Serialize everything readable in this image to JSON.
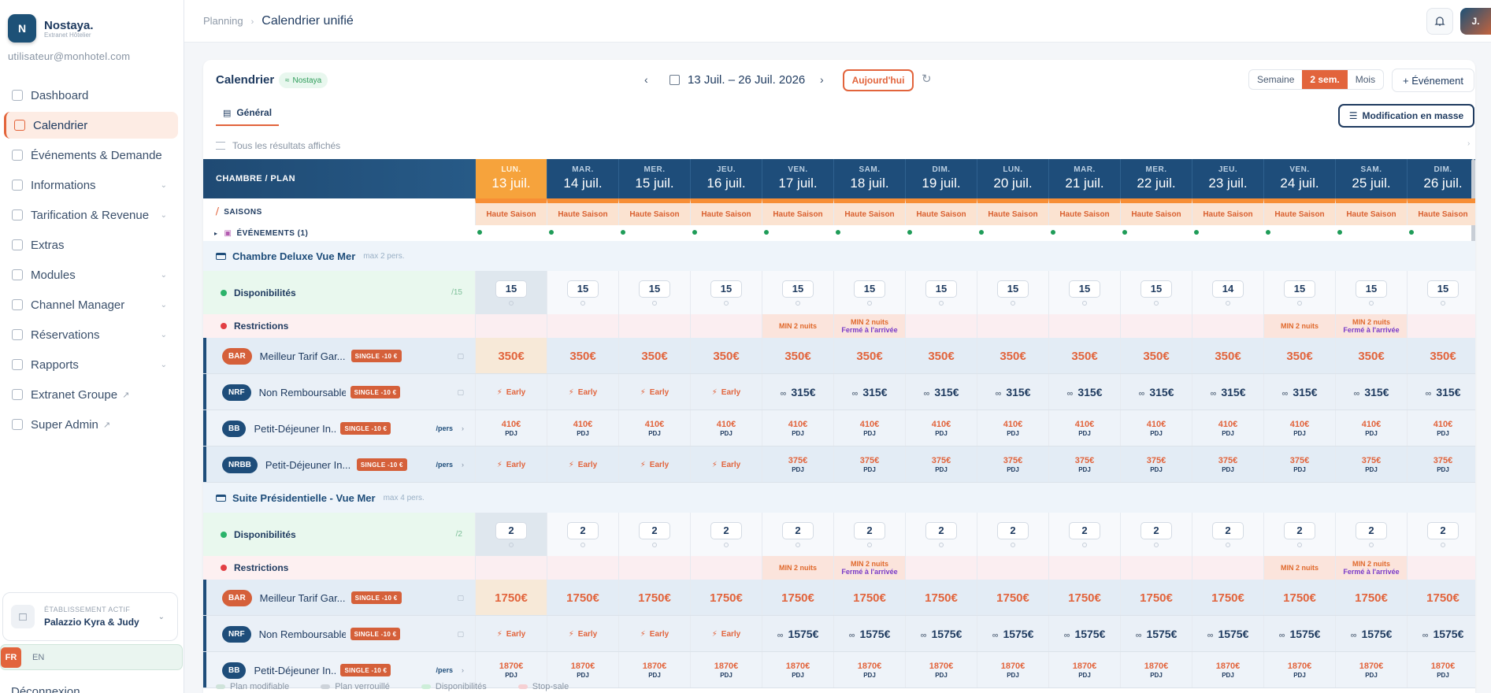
{
  "sidebar": {
    "logo_letter": "N",
    "brand_name": "Nostaya.",
    "brand_sub": "Extranet Hôtelier",
    "user_email": "utilisateur@monhotel.com",
    "items": [
      {
        "label": "Dashboard",
        "icon": "grid-icon"
      },
      {
        "label": "Calendrier",
        "icon": "calendar-icon",
        "active": true
      },
      {
        "label": "Événements & Demande",
        "icon": "sparkle-icon"
      },
      {
        "label": "Informations",
        "icon": "building-icon",
        "chevron": true
      },
      {
        "label": "Tarification & Revenue",
        "icon": "dollar-icon",
        "chevron": true
      },
      {
        "label": "Extras",
        "icon": "box-icon"
      },
      {
        "label": "Modules",
        "icon": "grid-icon",
        "chevron": true
      },
      {
        "label": "Channel Manager",
        "icon": "broadcast-icon",
        "chevron": true
      },
      {
        "label": "Réservations",
        "icon": "book-icon",
        "chevron": true
      },
      {
        "label": "Rapports",
        "icon": "chart-icon",
        "chevron": true
      },
      {
        "label": "Extranet Groupe",
        "icon": "building-icon",
        "external": true
      },
      {
        "label": "Super Admin",
        "icon": "shield-icon",
        "external": true
      }
    ],
    "establishment_label": "ÉTABLISSEMENT ACTIF",
    "establishment_name": "Palazzio Kyra & Judy",
    "lang_fr": "FR",
    "lang_en": "EN",
    "logout": "Déconnexion"
  },
  "topbar": {
    "breadcrumb_parent": "Planning",
    "breadcrumb_current": "Calendrier unifié",
    "avatar": "J."
  },
  "toolbar": {
    "title": "Calendrier",
    "tag": "Nostaya",
    "date_range": "13 Juil. – 26 Juil. 2026",
    "today": "Aujourd'hui",
    "views": [
      "Semaine",
      "2 sem.",
      "Mois"
    ],
    "active_view": "2 sem.",
    "event_button": "+ Événement",
    "tab": "Général",
    "bulk_button": "Modification en masse",
    "filter_text": "Tous les résultats affichés"
  },
  "grid": {
    "corner": "CHAMBRE / PLAN",
    "days": [
      {
        "dn": "LUN.",
        "dd": "13 juil.",
        "today": true
      },
      {
        "dn": "MAR.",
        "dd": "14 juil."
      },
      {
        "dn": "MER.",
        "dd": "15 juil."
      },
      {
        "dn": "JEU.",
        "dd": "16 juil."
      },
      {
        "dn": "VEN.",
        "dd": "17 juil."
      },
      {
        "dn": "SAM.",
        "dd": "18 juil."
      },
      {
        "dn": "DIM.",
        "dd": "19 juil."
      },
      {
        "dn": "LUN.",
        "dd": "20 juil."
      },
      {
        "dn": "MAR.",
        "dd": "21 juil."
      },
      {
        "dn": "MER.",
        "dd": "22 juil."
      },
      {
        "dn": "JEU.",
        "dd": "23 juil."
      },
      {
        "dn": "VEN.",
        "dd": "24 juil."
      },
      {
        "dn": "SAM.",
        "dd": "25 juil."
      },
      {
        "dn": "DIM.",
        "dd": "26 juil."
      }
    ],
    "seasons_label": "SAISONS",
    "season_value": "Haute Saison",
    "events_label": "ÉVÉNEMENTS (1)",
    "restrictions": [
      null,
      null,
      null,
      null,
      "min",
      "min-close",
      null,
      null,
      null,
      null,
      null,
      "min",
      "min-close",
      null
    ],
    "restriction_min": "MIN 2 nuits",
    "restriction_close": "Fermé à l'arrivée",
    "labels": {
      "dispo": "Disponibilités",
      "restr": "Restrictions",
      "pers": "/pers",
      "pdj": "PDJ",
      "early": "Early",
      "single": "SINGLE -10 €"
    },
    "rooms": [
      {
        "name": "Chambre Deluxe Vue Mer",
        "cap": "max 2 pers.",
        "dispo_total": "/15",
        "dispo": [
          "15",
          "15",
          "15",
          "15",
          "15",
          "15",
          "15",
          "15",
          "15",
          "15",
          "14",
          "15",
          "15",
          "15"
        ],
        "plans": [
          {
            "badge": "BAR",
            "name": "Meilleur Tarif Gar...",
            "kind": "bar",
            "values": [
              "350€",
              "350€",
              "350€",
              "350€",
              "350€",
              "350€",
              "350€",
              "350€",
              "350€",
              "350€",
              "350€",
              "350€",
              "350€",
              "350€"
            ]
          },
          {
            "badge": "NRF",
            "name": "Non Remboursable",
            "kind": "nrf",
            "values": [
              "early",
              "early",
              "early",
              "early",
              "315€",
              "315€",
              "315€",
              "315€",
              "315€",
              "315€",
              "315€",
              "315€",
              "315€",
              "315€"
            ]
          },
          {
            "badge": "BB",
            "name": "Petit-Déjeuner In...",
            "kind": "bb",
            "values": [
              "410€",
              "410€",
              "410€",
              "410€",
              "410€",
              "410€",
              "410€",
              "410€",
              "410€",
              "410€",
              "410€",
              "410€",
              "410€",
              "410€"
            ]
          },
          {
            "badge": "NRBB",
            "name": "Petit-Déjeuner In...",
            "kind": "nrbb",
            "values": [
              "early",
              "early",
              "early",
              "early",
              "375€",
              "375€",
              "375€",
              "375€",
              "375€",
              "375€",
              "375€",
              "375€",
              "375€",
              "375€"
            ]
          }
        ]
      },
      {
        "name": "Suite Présidentielle - Vue Mer",
        "cap": "max 4 pers.",
        "dispo_total": "/2",
        "dispo": [
          "2",
          "2",
          "2",
          "2",
          "2",
          "2",
          "2",
          "2",
          "2",
          "2",
          "2",
          "2",
          "2",
          "2"
        ],
        "plans": [
          {
            "badge": "BAR",
            "name": "Meilleur Tarif Gar...",
            "kind": "bar",
            "values": [
              "1750€",
              "1750€",
              "1750€",
              "1750€",
              "1750€",
              "1750€",
              "1750€",
              "1750€",
              "1750€",
              "1750€",
              "1750€",
              "1750€",
              "1750€",
              "1750€"
            ]
          },
          {
            "badge": "NRF",
            "name": "Non Remboursable",
            "kind": "nrf",
            "values": [
              "early",
              "early",
              "early",
              "early",
              "1575€",
              "1575€",
              "1575€",
              "1575€",
              "1575€",
              "1575€",
              "1575€",
              "1575€",
              "1575€",
              "1575€"
            ]
          },
          {
            "badge": "BB",
            "name": "Petit-Déjeuner In...",
            "kind": "bb",
            "values": [
              "1870€",
              "1870€",
              "1870€",
              "1870€",
              "1870€",
              "1870€",
              "1870€",
              "1870€",
              "1870€",
              "1870€",
              "1870€",
              "1870€",
              "1870€",
              "1870€"
            ]
          }
        ]
      }
    ]
  },
  "legend": [
    {
      "label": "Plan modifiable",
      "color": "#cfe3da"
    },
    {
      "label": "Plan verrouillé",
      "color": "#cdd3da"
    },
    {
      "label": "Disponibilités",
      "color": "#cdeed9"
    },
    {
      "label": "Stop-sale",
      "color": "#f6d0d3"
    }
  ],
  "colors": {
    "accent": "#e2643c",
    "primary": "#1e3a5f",
    "header": "#1e4d7a",
    "today": "#f6a33c"
  }
}
